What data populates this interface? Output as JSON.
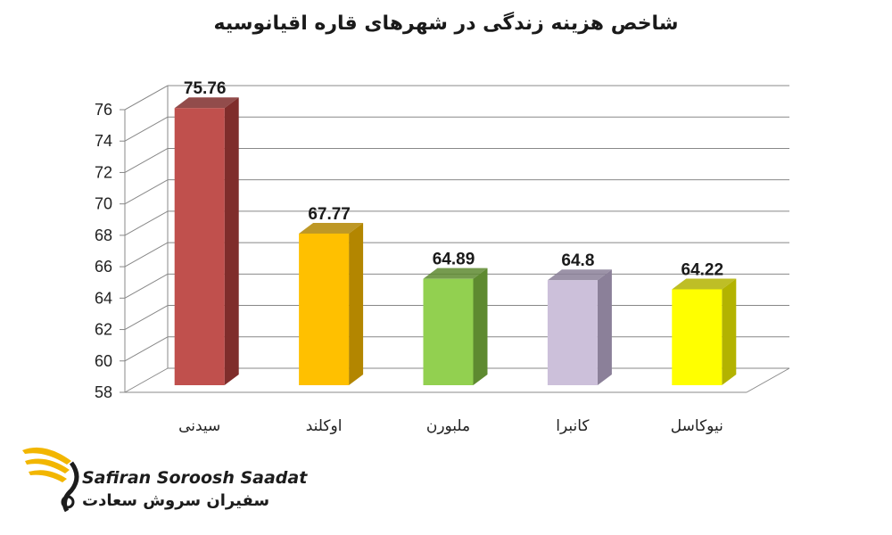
{
  "chart_data": {
    "type": "bar",
    "title": "شاخص هزینه زندگی در شهرهای قاره اقیانوسیه",
    "categories": [
      "سیدنی",
      "اوکلند",
      "ملبورن",
      "کانبرا",
      "نیوکاسل"
    ],
    "values": [
      75.76,
      67.77,
      64.89,
      64.8,
      64.22
    ],
    "value_labels": [
      "75.76",
      "67.77",
      "64.89",
      "64.8",
      "64.22"
    ],
    "colors": [
      "#c0504d",
      "#ffc000",
      "#92d050",
      "#ccc0da",
      "#ffff00"
    ],
    "side_colors": [
      "#7f2d2b",
      "#b38600",
      "#5e8a30",
      "#8b8099",
      "#b3b300"
    ],
    "ylim": [
      58,
      76
    ],
    "yticks": [
      "58",
      "60",
      "62",
      "64",
      "66",
      "68",
      "70",
      "72",
      "74",
      "76"
    ],
    "grid": true,
    "legend": "none",
    "xlabel": "",
    "ylabel": ""
  },
  "logo": {
    "text_en": "Safiran Soroosh Saadat",
    "text_fa": "سفیران سروش سعادت",
    "accent_color": "#f2b600"
  }
}
